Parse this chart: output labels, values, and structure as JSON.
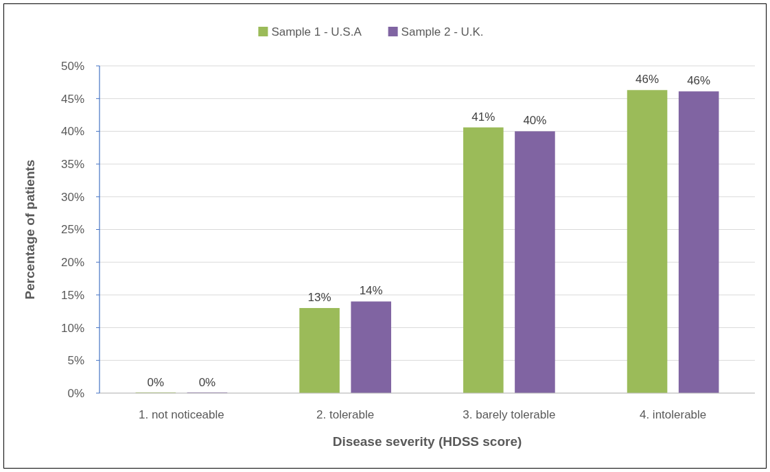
{
  "chart_data": {
    "type": "bar",
    "xlabel": "Disease severity (HDSS score)",
    "ylabel": "Percentage of patients",
    "categories": [
      "1. not noticeable",
      "2. tolerable",
      "3. barely tolerable",
      "4. intolerable"
    ],
    "series": [
      {
        "name": "Sample 1 - U.S.A",
        "color": "#9bbb59",
        "values": [
          0,
          13,
          40.6,
          46.3
        ],
        "value_labels": [
          "0%",
          "13%",
          "41%",
          "46%"
        ]
      },
      {
        "name": "Sample 2 - U.K.",
        "color": "#8064a2",
        "values": [
          0,
          14,
          40,
          46.1
        ],
        "value_labels": [
          "0%",
          "14%",
          "40%",
          "46%"
        ]
      }
    ],
    "ylim": [
      0,
      50
    ],
    "yticks": [
      {
        "value": 0,
        "label": "0%"
      },
      {
        "value": 5,
        "label": "5%"
      },
      {
        "value": 10,
        "label": "10%"
      },
      {
        "value": 15,
        "label": "15%"
      },
      {
        "value": 20,
        "label": "20%"
      },
      {
        "value": 25,
        "label": "25%"
      },
      {
        "value": 30,
        "label": "30%"
      },
      {
        "value": 35,
        "label": "35%"
      },
      {
        "value": 40,
        "label": "40%"
      },
      {
        "value": 45,
        "label": "45%"
      },
      {
        "value": 50,
        "label": "50%"
      }
    ],
    "grid": "y",
    "legend": "top"
  }
}
